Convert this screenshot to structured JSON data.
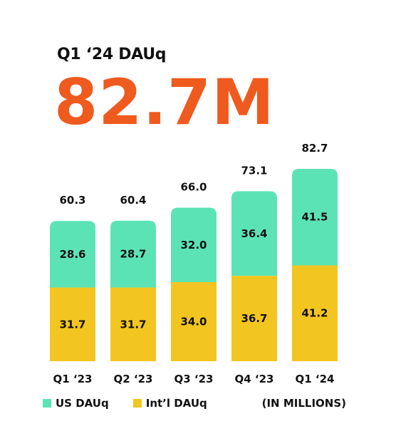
{
  "header": {
    "subtitle": "Q1 ‘24 DAUq",
    "big_value": "82.7M"
  },
  "colors": {
    "accent": "#ef5a1e",
    "us": "#5ce3b5",
    "intl": "#f2c520"
  },
  "legend": {
    "us_label": "US DAUq",
    "intl_label": "Int’l DAUq",
    "unit_note": "(IN MILLIONS)"
  },
  "chart_data": {
    "type": "bar",
    "stacked": true,
    "categories": [
      "Q1 ‘23",
      "Q2 ‘23",
      "Q3 ‘23",
      "Q4 ‘23",
      "Q1 ‘24"
    ],
    "series": [
      {
        "name": "Int’l DAUq",
        "values": [
          31.7,
          31.7,
          34.0,
          36.7,
          41.2
        ]
      },
      {
        "name": "US DAUq",
        "values": [
          28.6,
          28.7,
          32.0,
          36.4,
          41.5
        ]
      }
    ],
    "totals": [
      60.3,
      60.4,
      66.0,
      73.1,
      82.7
    ],
    "value_labels": {
      "intl": [
        "31.7",
        "31.7",
        "34.0",
        "36.7",
        "41.2"
      ],
      "us": [
        "28.6",
        "28.7",
        "32.0",
        "36.4",
        "41.5"
      ],
      "totals": [
        "60.3",
        "60.4",
        "66.0",
        "73.1",
        "82.7"
      ]
    },
    "ylim": [
      0,
      90
    ],
    "grid": false,
    "legend_position": "bottom-left"
  }
}
